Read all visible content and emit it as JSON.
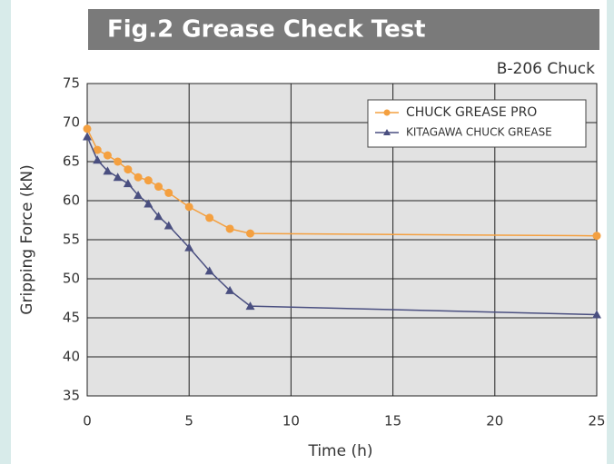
{
  "chart_data": {
    "type": "line",
    "title": "Fig.2  Grease Check Test",
    "subtitle": "B-206 Chuck",
    "x_label": "Time  (h)",
    "y_label": "Gripping Force  (kN)",
    "x": [
      0,
      0.5,
      1,
      1.5,
      2,
      2.5,
      3,
      3.5,
      4,
      5,
      6,
      7,
      8,
      25
    ],
    "series": [
      {
        "name": "CHUCK GREASE PRO",
        "color": "#f4a040",
        "marker": "circle",
        "values": [
          69.2,
          66.5,
          65.8,
          65,
          64,
          63,
          62.6,
          61.8,
          61,
          59.2,
          57.8,
          56.4,
          55.8,
          55.5
        ]
      },
      {
        "name": "KITAGAWA CHUCK GREASE",
        "color": "#4a4f80",
        "marker": "triangle",
        "values": [
          68.2,
          65.2,
          63.8,
          63,
          62.2,
          60.7,
          59.6,
          58,
          56.8,
          54,
          51,
          48.5,
          46.5,
          45.4
        ]
      }
    ],
    "xlim": [
      0,
      25
    ],
    "xticks": [
      0,
      5,
      10,
      15,
      20,
      25
    ],
    "ylim": [
      35,
      75
    ],
    "yticks": [
      35,
      40,
      45,
      50,
      55,
      60,
      65,
      70,
      75
    ],
    "grid": true,
    "legend": "upper right"
  }
}
